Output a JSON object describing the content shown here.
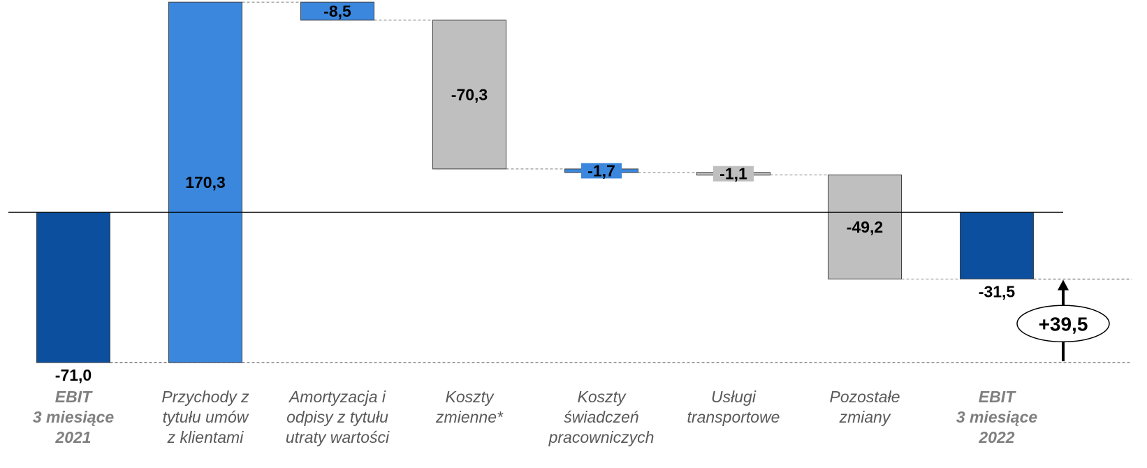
{
  "chart_data": {
    "type": "waterfall",
    "unit": "",
    "categories": [
      {
        "lines": [
          "EBIT",
          "3 miesiące",
          "2021"
        ],
        "bold": true
      },
      {
        "lines": [
          "Przychody z",
          "tytułu umów",
          "z klientami"
        ],
        "bold": false
      },
      {
        "lines": [
          "Amortyzacja i",
          "odpisy z tytułu",
          "utraty wartości"
        ],
        "bold": false
      },
      {
        "lines": [
          "Koszty",
          "zmienne*"
        ],
        "bold": false
      },
      {
        "lines": [
          "Koszty",
          "świadczeń",
          "pracowniczych"
        ],
        "bold": false
      },
      {
        "lines": [
          "Usługi",
          "transportowe"
        ],
        "bold": false
      },
      {
        "lines": [
          "Pozostałe",
          "zmiany"
        ],
        "bold": false
      },
      {
        "lines": [
          "EBIT",
          "3 miesiące",
          "2022"
        ],
        "bold": true
      }
    ],
    "values": [
      -71.0,
      170.3,
      -8.5,
      -70.3,
      -1.7,
      -1.1,
      -49.2,
      -31.5
    ],
    "labels": [
      "-71,0",
      "170,3",
      "-8,5",
      "-70,3",
      "-1,7",
      "-1,1",
      "-49,2",
      "-31,5"
    ],
    "kinds": [
      "total",
      "delta",
      "delta",
      "delta",
      "delta",
      "delta",
      "delta",
      "total"
    ],
    "colors": [
      "#0B4F9E",
      "#3A87DD",
      "#3A87DD",
      "#BFBFBF",
      "#3A87DD",
      "#BFBFBF",
      "#BFBFBF",
      "#0B4F9E"
    ],
    "change_label": "+39,5",
    "change_value": 39.5
  }
}
